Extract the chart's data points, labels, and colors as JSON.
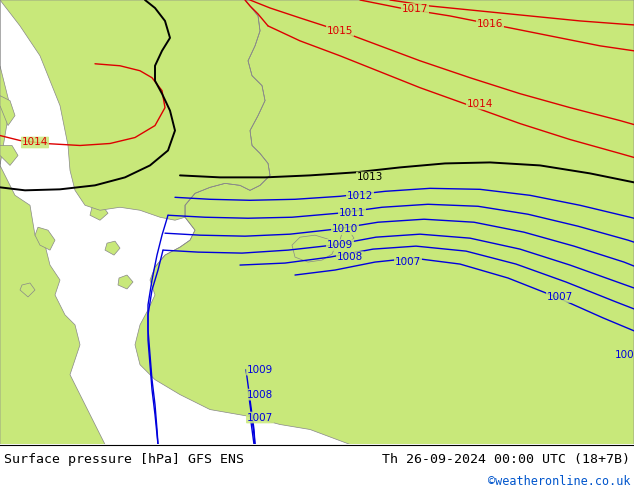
{
  "title_left": "Surface pressure [hPa] GFS ENS",
  "title_right": "Th 26-09-2024 00:00 UTC (18+7B)",
  "copyright": "©weatheronline.co.uk",
  "bg_color": "#c8e87a",
  "sea_color": "#d0d0d0",
  "footer_bg": "#ffffff",
  "copyright_color": "#0055cc",
  "font_size_footer": 9.5
}
